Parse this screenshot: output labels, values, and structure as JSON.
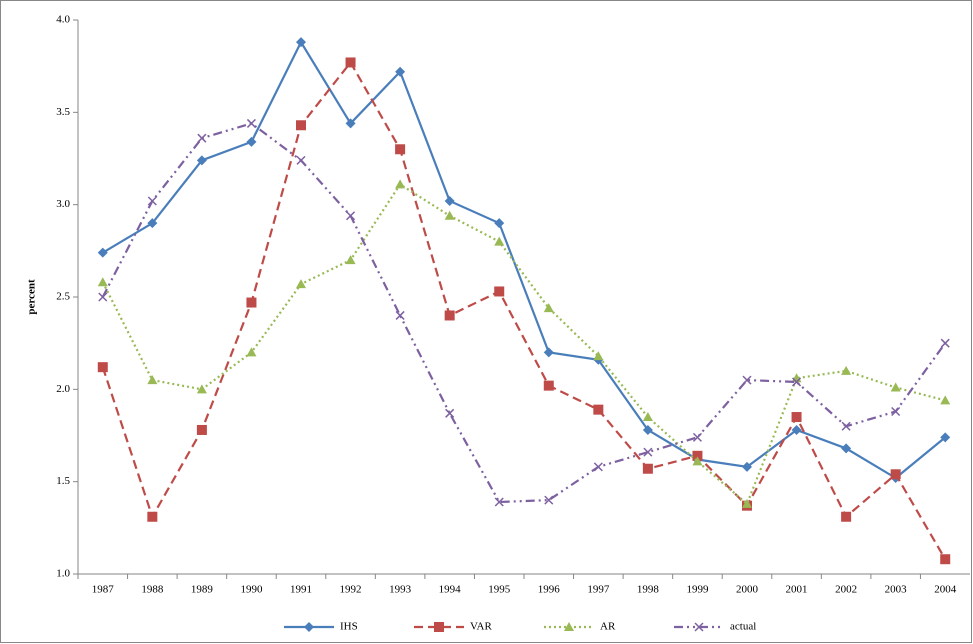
{
  "chart_data": {
    "type": "line",
    "y_label": "percent",
    "categories": [
      "1987",
      "1988",
      "1989",
      "1990",
      "1991",
      "1992",
      "1993",
      "1994",
      "1995",
      "1996",
      "1997",
      "1998",
      "1999",
      "2000",
      "2001",
      "2002",
      "2003",
      "2004"
    ],
    "ylim": [
      1.0,
      4.0
    ],
    "yticks": [
      {
        "value": 1.0,
        "label": "1.0"
      },
      1.5,
      {
        "value": 2.0,
        "label": "2.0"
      },
      2.5,
      {
        "value": 3.0,
        "label": "3.0"
      },
      3.5,
      {
        "value": 4.0,
        "label": "4.0"
      }
    ],
    "grid": false,
    "legend": "bottom",
    "series": [
      {
        "name": "IHS",
        "color": "#4a7ebb",
        "marker": "diamond",
        "dash": "solid",
        "values": [
          2.74,
          2.9,
          3.24,
          3.34,
          3.88,
          3.44,
          3.72,
          3.02,
          2.9,
          2.2,
          2.16,
          1.78,
          1.62,
          1.58,
          1.78,
          1.68,
          1.52,
          1.74
        ]
      },
      {
        "name": "VAR",
        "color": "#be4b48",
        "marker": "square",
        "dash": "dash",
        "values": [
          2.12,
          1.31,
          1.78,
          2.47,
          3.43,
          3.77,
          3.3,
          2.4,
          2.53,
          2.02,
          1.89,
          1.57,
          1.64,
          1.37,
          1.85,
          1.31,
          1.54,
          1.08
        ]
      },
      {
        "name": "AR",
        "color": "#98b954",
        "marker": "triangle",
        "dash": "dot",
        "values": [
          2.58,
          2.05,
          2.0,
          2.2,
          2.57,
          2.7,
          3.11,
          2.94,
          2.8,
          2.44,
          2.18,
          1.85,
          1.61,
          1.38,
          2.06,
          2.1,
          2.01,
          1.94
        ]
      },
      {
        "name": "actual",
        "color": "#7d60a0",
        "marker": "x",
        "dash": "dashdot",
        "values": [
          2.5,
          3.02,
          3.36,
          3.44,
          3.24,
          2.94,
          2.4,
          1.87,
          1.39,
          1.4,
          1.58,
          1.66,
          1.74,
          2.05,
          2.04,
          1.8,
          1.88,
          2.25
        ]
      }
    ]
  }
}
